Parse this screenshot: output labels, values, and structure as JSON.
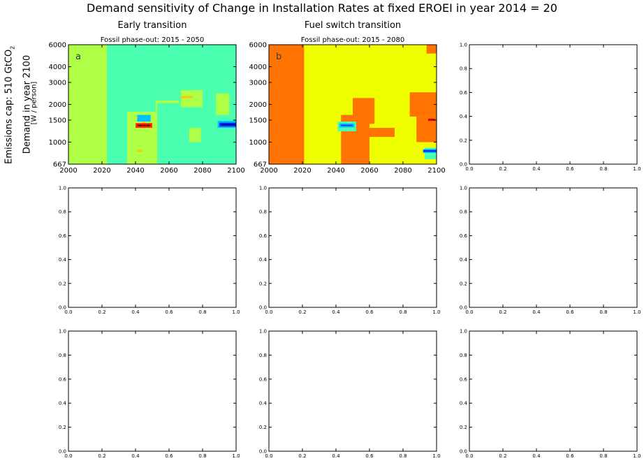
{
  "figure": {
    "title": "Demand sensitivity of Change in Installation Rates at fixed EROEI in year 2014 = 20",
    "row_label": "Emissions cap: 510 GtCO",
    "row_label_sub": "2",
    "ylabel": "Demand in year 2100",
    "ylabel_unit": "[W / person]",
    "col_titles": [
      "Early transition",
      "Fuel switch transition"
    ]
  },
  "chart_data": [
    {
      "type": "heatmap",
      "panel_letter": "a",
      "title": "Fossil phase-out: 2015 - 2050",
      "x_ticks": [
        "2000",
        "2020",
        "2040",
        "2060",
        "2080",
        "2100"
      ],
      "y_ticks": [
        "667",
        "1000",
        "1500",
        "2000",
        "3000",
        "4000",
        "6000"
      ],
      "xlim": [
        2000,
        2100
      ],
      "ylim": [
        667,
        6000
      ],
      "yscale": "log",
      "background": "#b0ff47",
      "regions": [
        {
          "color": "#4affaf",
          "x0": 2023,
          "x1": 2100,
          "y0": 2150,
          "y1": 6000
        },
        {
          "color": "#4affaf",
          "x0": 2066,
          "x1": 2100,
          "y0": 667,
          "y1": 2150
        },
        {
          "color": "#4affaf",
          "x0": 2023,
          "x1": 2035,
          "y0": 667,
          "y1": 2150
        },
        {
          "color": "#4affaf",
          "x0": 2035,
          "x1": 2052,
          "y0": 1750,
          "y1": 2150
        },
        {
          "color": "#4affaf",
          "x0": 2053,
          "x1": 2066,
          "y0": 667,
          "y1": 2050
        },
        {
          "color": "#b0ff47",
          "x0": 2067,
          "x1": 2080,
          "y0": 1900,
          "y1": 2600
        },
        {
          "color": "#b0ff47",
          "x0": 2088,
          "x1": 2096,
          "y0": 1650,
          "y1": 2450
        },
        {
          "color": "#b0ff47",
          "x0": 2072,
          "x1": 2079,
          "y0": 1000,
          "y1": 1300
        },
        {
          "color": "#ffc600",
          "x0": 2067,
          "x1": 2074,
          "y0": 2250,
          "y1": 2330
        },
        {
          "color": "#ffc600",
          "x0": 2041,
          "x1": 2044,
          "y0": 840,
          "y1": 870
        },
        {
          "color": "#ffc600",
          "x0": 2044,
          "x1": 2046,
          "y0": 1290,
          "y1": 1480
        },
        {
          "color": "#00c0ff",
          "x0": 2041,
          "x1": 2049,
          "y0": 1460,
          "y1": 1650
        },
        {
          "color": "#ff3300",
          "x0": 2040,
          "x1": 2050,
          "y0": 1300,
          "y1": 1420
        },
        {
          "color": "#800000",
          "x0": 2041,
          "x1": 2049,
          "y0": 1340,
          "y1": 1380
        },
        {
          "color": "#00c0ff",
          "x0": 2089,
          "x1": 2100,
          "y0": 1300,
          "y1": 1480
        },
        {
          "color": "#0030ff",
          "x0": 2090,
          "x1": 2100,
          "y0": 1330,
          "y1": 1430
        },
        {
          "color": "#000080",
          "x0": 2091,
          "x1": 2100,
          "y0": 1365,
          "y1": 1395
        }
      ]
    },
    {
      "type": "heatmap",
      "panel_letter": "b",
      "title": "Fossil phase-out: 2015 - 2080",
      "x_ticks": [
        "2000",
        "2020",
        "2040",
        "2060",
        "2080",
        "2100"
      ],
      "y_ticks": [
        "667",
        "1000",
        "1500",
        "2000",
        "3000",
        "4000",
        "6000"
      ],
      "xlim": [
        2000,
        2100
      ],
      "ylim": [
        667,
        6000
      ],
      "yscale": "log",
      "background": "#f0ff00",
      "regions": [
        {
          "color": "#ff7400",
          "x0": 2000,
          "x1": 2021,
          "y0": 667,
          "y1": 6000
        },
        {
          "color": "#ff7400",
          "x0": 2043,
          "x1": 2060,
          "y0": 667,
          "y1": 1650
        },
        {
          "color": "#ff7400",
          "x0": 2050,
          "x1": 2063,
          "y0": 1400,
          "y1": 2250
        },
        {
          "color": "#ff7400",
          "x0": 2084,
          "x1": 2100,
          "y0": 1600,
          "y1": 2500
        },
        {
          "color": "#ff7400",
          "x0": 2088,
          "x1": 2100,
          "y0": 1000,
          "y1": 1600
        },
        {
          "color": "#ff7400",
          "x0": 2094,
          "x1": 2100,
          "y0": 5100,
          "y1": 6000
        },
        {
          "color": "#ff7400",
          "x0": 2060,
          "x1": 2075,
          "y0": 1100,
          "y1": 1300
        },
        {
          "color": "#4affaf",
          "x0": 2041,
          "x1": 2052,
          "y0": 1220,
          "y1": 1460
        },
        {
          "color": "#00c0ff",
          "x0": 2042,
          "x1": 2051,
          "y0": 1310,
          "y1": 1410
        },
        {
          "color": "#0030ff",
          "x0": 2043,
          "x1": 2050,
          "y0": 1345,
          "y1": 1375
        },
        {
          "color": "#4affaf",
          "x0": 2093,
          "x1": 2100,
          "y0": 730,
          "y1": 900
        },
        {
          "color": "#00c0ff",
          "x0": 2092,
          "x1": 2100,
          "y0": 820,
          "y1": 880
        },
        {
          "color": "#0030ff",
          "x0": 2092,
          "x1": 2100,
          "y0": 835,
          "y1": 865
        },
        {
          "color": "#d40000",
          "x0": 2095,
          "x1": 2099,
          "y0": 1480,
          "y1": 1540
        }
      ]
    },
    {
      "type": "empty",
      "x_ticks": [
        "0.0",
        "0.2",
        "0.4",
        "0.6",
        "0.8",
        "1.0"
      ],
      "y_ticks": [
        "0.0",
        "0.2",
        "0.4",
        "0.6",
        "0.8",
        "1.0"
      ]
    },
    {
      "type": "empty",
      "x_ticks": [
        "0.0",
        "0.2",
        "0.4",
        "0.6",
        "0.8",
        "1.0"
      ],
      "y_ticks": [
        "0.0",
        "0.2",
        "0.4",
        "0.6",
        "0.8",
        "1.0"
      ]
    },
    {
      "type": "empty",
      "x_ticks": [
        "0.0",
        "0.2",
        "0.4",
        "0.6",
        "0.8",
        "1.0"
      ],
      "y_ticks": [
        "0.0",
        "0.2",
        "0.4",
        "0.6",
        "0.8",
        "1.0"
      ]
    },
    {
      "type": "empty",
      "x_ticks": [
        "0.0",
        "0.2",
        "0.4",
        "0.6",
        "0.8",
        "1.0"
      ],
      "y_ticks": [
        "0.0",
        "0.2",
        "0.4",
        "0.6",
        "0.8",
        "1.0"
      ]
    },
    {
      "type": "empty",
      "x_ticks": [
        "0.0",
        "0.2",
        "0.4",
        "0.6",
        "0.8",
        "1.0"
      ],
      "y_ticks": [
        "0.0",
        "0.2",
        "0.4",
        "0.6",
        "0.8",
        "1.0"
      ]
    },
    {
      "type": "empty",
      "x_ticks": [
        "0.0",
        "0.2",
        "0.4",
        "0.6",
        "0.8",
        "1.0"
      ],
      "y_ticks": [
        "0.0",
        "0.2",
        "0.4",
        "0.6",
        "0.8",
        "1.0"
      ]
    },
    {
      "type": "empty",
      "x_ticks": [
        "0.0",
        "0.2",
        "0.4",
        "0.6",
        "0.8",
        "1.0"
      ],
      "y_ticks": [
        "0.0",
        "0.2",
        "0.4",
        "0.6",
        "0.8",
        "1.0"
      ]
    }
  ]
}
